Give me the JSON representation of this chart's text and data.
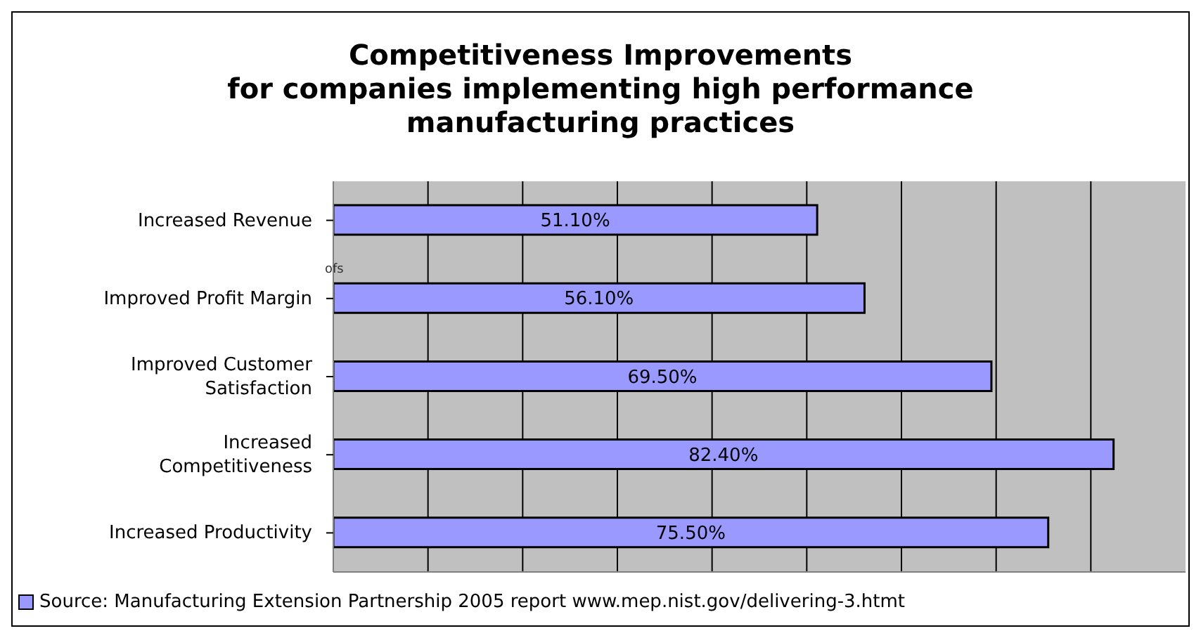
{
  "chart_data": {
    "type": "bar",
    "orientation": "horizontal",
    "title": "Competitiveness Improvements\nfor companies implementing high performance\nmanufacturing practices",
    "categories": [
      "Increased Revenue",
      "Improved Profit Margin",
      "Improved Customer Satisfaction",
      "Increased Competitiveness",
      "Increased Productivity"
    ],
    "series": [
      {
        "name": "Source: Manufacturing Extension Partnership 2005 report www.mep.nist.gov/delivering-3.htmt",
        "color": "#9999ff",
        "values": [
          51.1,
          56.1,
          69.5,
          82.4,
          75.5
        ],
        "value_labels": [
          "51.10%",
          "56.10%",
          "69.50%",
          "82.40%",
          "75.50%"
        ]
      }
    ],
    "xlim": [
      0,
      90
    ],
    "xticks": [
      {
        "value": 10,
        "label": null
      },
      {
        "value": 20,
        "label": null
      },
      {
        "value": 30,
        "label": null
      },
      {
        "value": 40,
        "label": null
      },
      {
        "value": 50,
        "label": null
      },
      {
        "value": 60,
        "label": null
      },
      {
        "value": 70,
        "label": null
      },
      {
        "value": 80,
        "label": null
      }
    ],
    "grid": "x",
    "tick_labels": "y",
    "legend": "bottom left",
    "annotations": [
      "ofs"
    ]
  }
}
